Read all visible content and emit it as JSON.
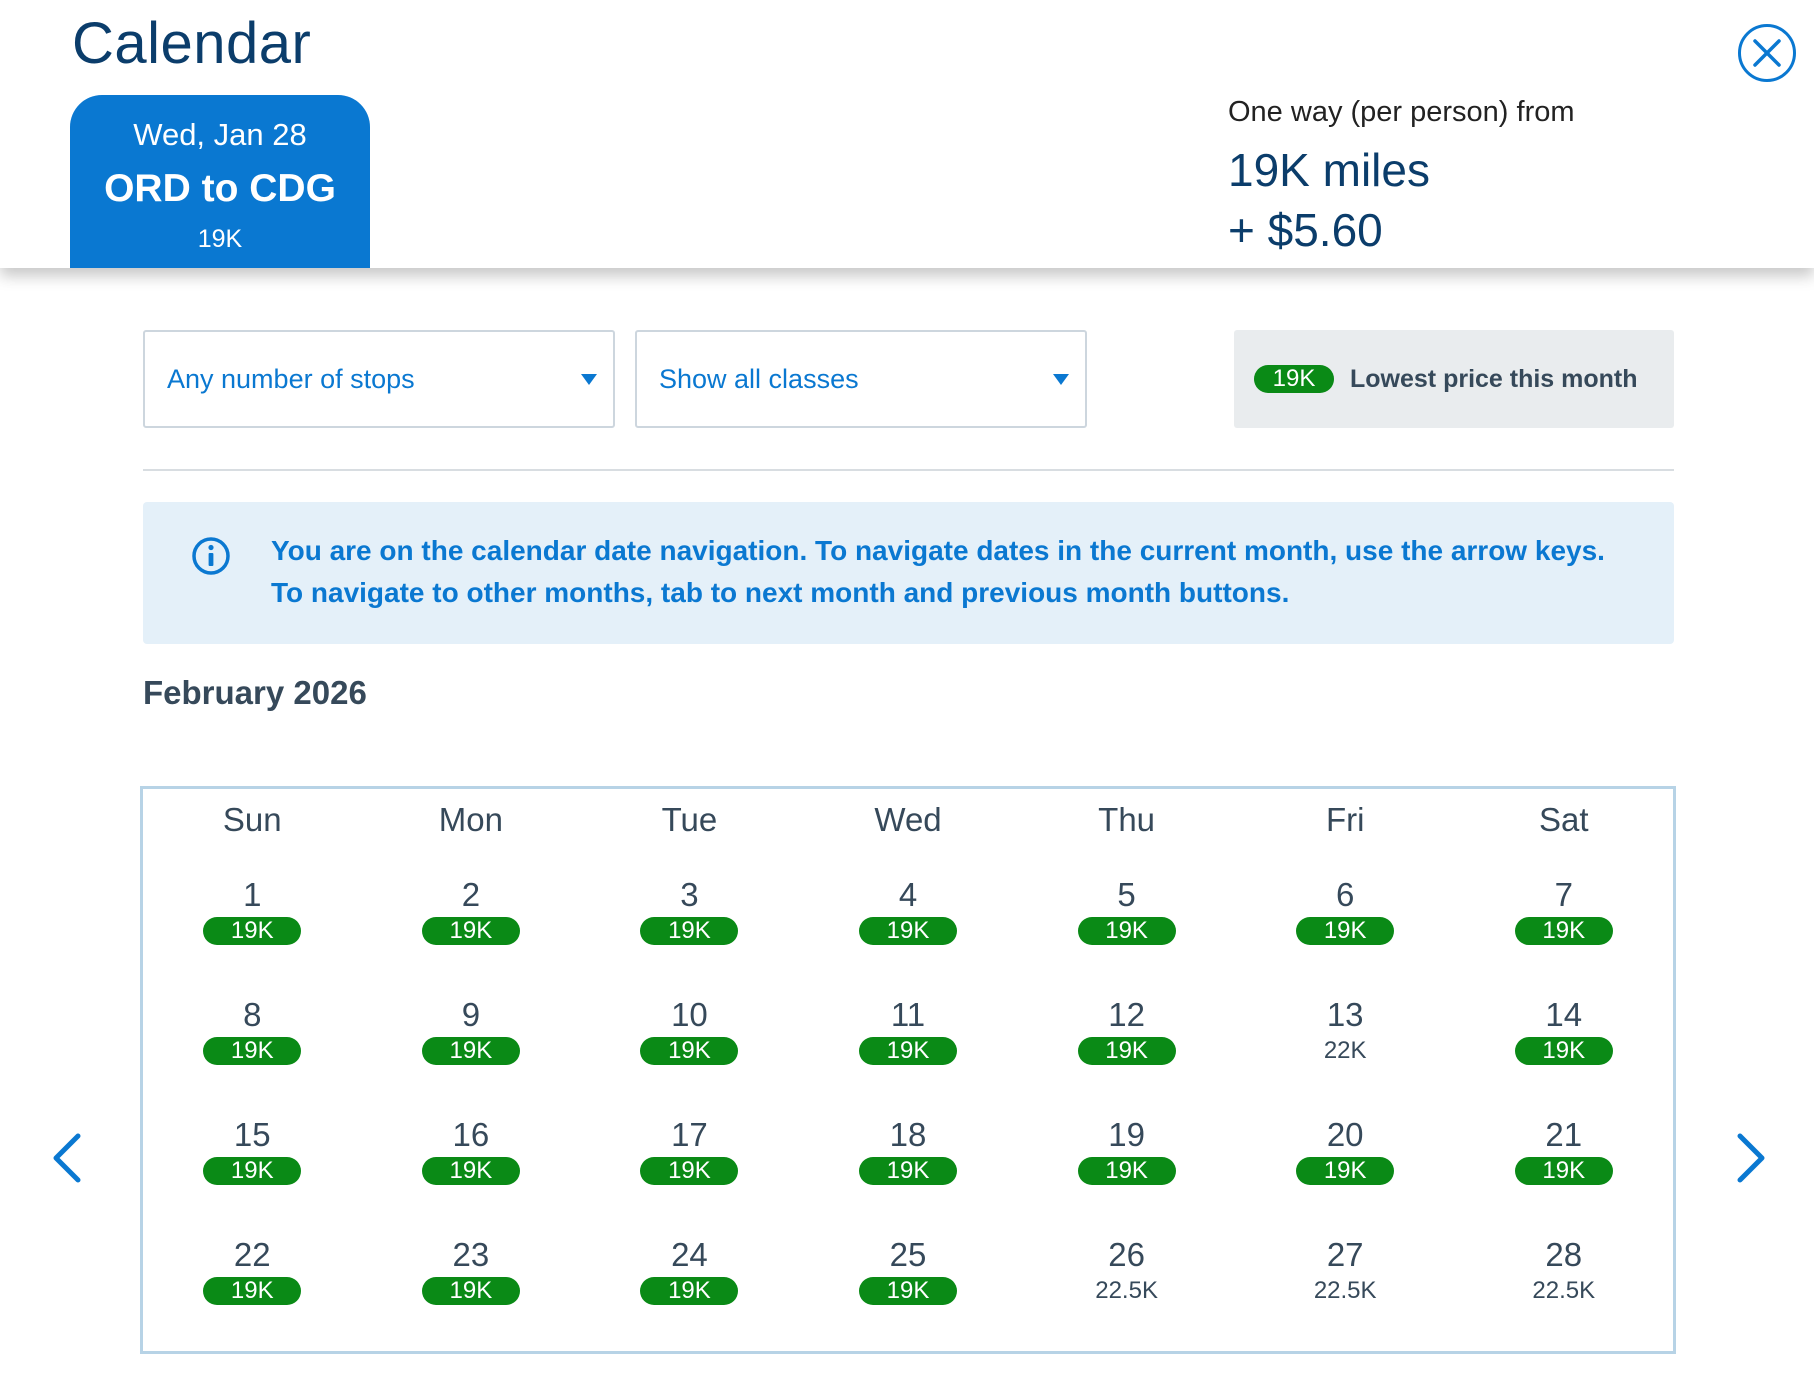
{
  "header": {
    "title": "Calendar",
    "close_icon": "close-icon",
    "tab": {
      "date": "Wed, Jan 28",
      "route": "ORD to CDG",
      "price": "19K"
    },
    "fare": {
      "label": "One way (per person) from",
      "miles": "19K miles",
      "cash": "+ $5.60"
    }
  },
  "filters": {
    "stops": "Any number of stops",
    "classes": "Show all classes"
  },
  "legend": {
    "pill": "19K",
    "label": "Lowest price this month"
  },
  "info": {
    "icon": "info-icon",
    "message": "You are on the calendar date navigation. To navigate dates in the current month, use the arrow keys. To navigate to other months, tab to next month and previous month buttons."
  },
  "calendar": {
    "month": "February 2026",
    "days_of_week": [
      "Sun",
      "Mon",
      "Tue",
      "Wed",
      "Thu",
      "Fri",
      "Sat"
    ],
    "weeks": [
      [
        {
          "day": "1",
          "price": "19K",
          "lowest": true
        },
        {
          "day": "2",
          "price": "19K",
          "lowest": true
        },
        {
          "day": "3",
          "price": "19K",
          "lowest": true
        },
        {
          "day": "4",
          "price": "19K",
          "lowest": true
        },
        {
          "day": "5",
          "price": "19K",
          "lowest": true
        },
        {
          "day": "6",
          "price": "19K",
          "lowest": true
        },
        {
          "day": "7",
          "price": "19K",
          "lowest": true
        }
      ],
      [
        {
          "day": "8",
          "price": "19K",
          "lowest": true
        },
        {
          "day": "9",
          "price": "19K",
          "lowest": true
        },
        {
          "day": "10",
          "price": "19K",
          "lowest": true
        },
        {
          "day": "11",
          "price": "19K",
          "lowest": true
        },
        {
          "day": "12",
          "price": "19K",
          "lowest": true
        },
        {
          "day": "13",
          "price": "22K",
          "lowest": false
        },
        {
          "day": "14",
          "price": "19K",
          "lowest": true
        }
      ],
      [
        {
          "day": "15",
          "price": "19K",
          "lowest": true
        },
        {
          "day": "16",
          "price": "19K",
          "lowest": true
        },
        {
          "day": "17",
          "price": "19K",
          "lowest": true
        },
        {
          "day": "18",
          "price": "19K",
          "lowest": true
        },
        {
          "day": "19",
          "price": "19K",
          "lowest": true
        },
        {
          "day": "20",
          "price": "19K",
          "lowest": true
        },
        {
          "day": "21",
          "price": "19K",
          "lowest": true
        }
      ],
      [
        {
          "day": "22",
          "price": "19K",
          "lowest": true
        },
        {
          "day": "23",
          "price": "19K",
          "lowest": true
        },
        {
          "day": "24",
          "price": "19K",
          "lowest": true
        },
        {
          "day": "25",
          "price": "19K",
          "lowest": true
        },
        {
          "day": "26",
          "price": "22.5K",
          "lowest": false
        },
        {
          "day": "27",
          "price": "22.5K",
          "lowest": false
        },
        {
          "day": "28",
          "price": "22.5K",
          "lowest": false
        }
      ]
    ],
    "prev_icon": "chevron-left-icon",
    "next_icon": "chevron-right-icon"
  },
  "colors": {
    "primary": "#0a78d1",
    "title": "#0b3d6b",
    "lowest_pill": "#0a8a16",
    "info_bg": "#e4f0f9"
  }
}
